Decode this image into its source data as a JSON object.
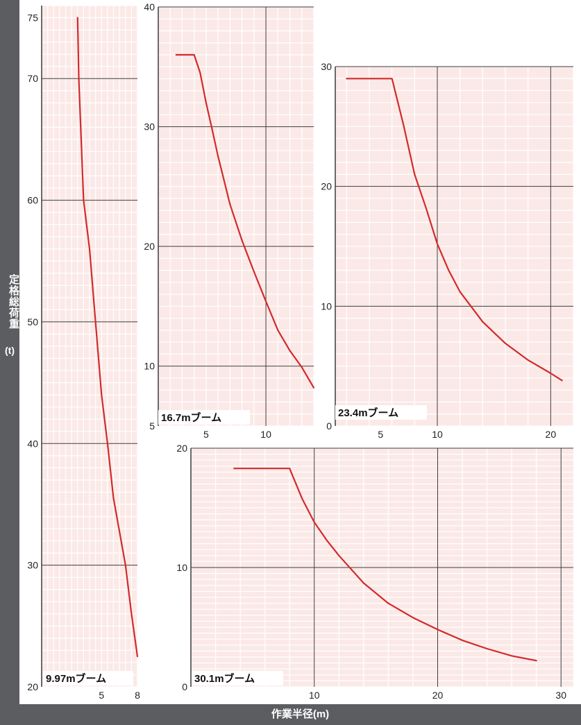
{
  "axis_labels": {
    "y": "定格総荷重",
    "y_unit": "(t)",
    "x": "作業半径(m)"
  },
  "colors": {
    "plot_background": "#fbe9e7",
    "minor_grid": "#ffffff",
    "major_grid": "#3a3a3a",
    "curve": "#d22a2a",
    "axis_band": "#5b5d60"
  },
  "chart_data": [
    {
      "type": "line",
      "title": "9.97mブーム",
      "xlim": [
        0,
        8
      ],
      "ylim": [
        20,
        76
      ],
      "x_ticks": [
        5,
        8
      ],
      "y_ticks": [
        20,
        30,
        40,
        50,
        60,
        70,
        75
      ],
      "grid": true,
      "series": [
        {
          "x": [
            3.0,
            3.1,
            3.5,
            4.0,
            4.5,
            5.0,
            5.5,
            6.0,
            7.0,
            7.5,
            8.0
          ],
          "y": [
            75,
            70,
            60,
            56,
            50,
            44,
            40,
            35.5,
            30,
            26,
            22.5
          ]
        }
      ]
    },
    {
      "type": "line",
      "title": "16.7mブーム",
      "xlim": [
        1,
        14
      ],
      "ylim": [
        5,
        40
      ],
      "x_ticks": [
        5,
        10
      ],
      "y_ticks": [
        5,
        10,
        20,
        30,
        40
      ],
      "grid": true,
      "series": [
        {
          "x": [
            2.5,
            4.0,
            4.5,
            5.0,
            5.5,
            6.0,
            7.0,
            8.0,
            9.0,
            10.0,
            11.0,
            12.0,
            13.0,
            14.0
          ],
          "y": [
            36,
            36,
            34.5,
            32,
            29.8,
            27.5,
            23.5,
            20.5,
            17.9,
            15.4,
            13.0,
            11.3,
            9.9,
            8.2
          ]
        }
      ]
    },
    {
      "type": "line",
      "title": "23.4mブーム",
      "xlim": [
        1,
        22
      ],
      "ylim": [
        0,
        30
      ],
      "x_ticks": [
        5,
        10,
        20
      ],
      "y_ticks": [
        0,
        10,
        20,
        30
      ],
      "grid": true,
      "series": [
        {
          "x": [
            2.0,
            6.0,
            7.0,
            8.0,
            9.0,
            10.0,
            11.0,
            12.0,
            14.0,
            16.0,
            18.0,
            20.0,
            21.0
          ],
          "y": [
            29,
            29,
            25.2,
            21.0,
            18.2,
            15.2,
            13.0,
            11.2,
            8.7,
            6.9,
            5.5,
            4.4,
            3.8
          ]
        }
      ]
    },
    {
      "type": "line",
      "title": "30.1mブーム",
      "xlim": [
        0,
        31
      ],
      "ylim": [
        0,
        20
      ],
      "x_ticks": [
        10,
        20,
        30
      ],
      "y_ticks": [
        0,
        10,
        20
      ],
      "grid": true,
      "series": [
        {
          "x": [
            3.5,
            8.0,
            9.0,
            10.0,
            11.0,
            12.0,
            14.0,
            16.0,
            18.0,
            20.0,
            22.0,
            24.0,
            26.0,
            28.0
          ],
          "y": [
            18.3,
            18.3,
            15.8,
            13.8,
            12.3,
            11.0,
            8.7,
            7.0,
            5.8,
            4.8,
            3.9,
            3.2,
            2.6,
            2.2
          ]
        }
      ]
    }
  ]
}
